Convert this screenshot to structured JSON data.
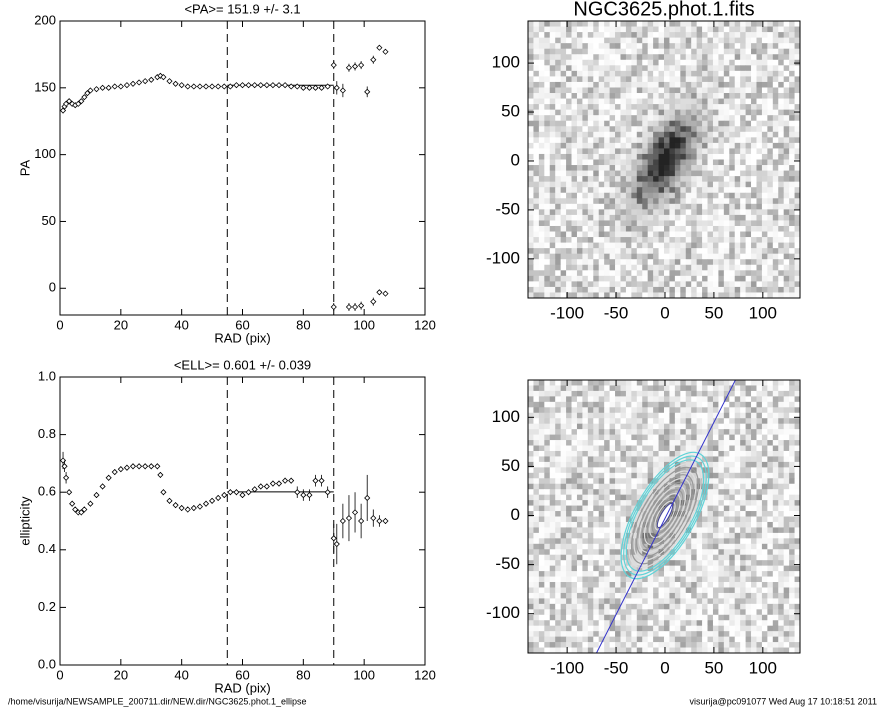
{
  "chart_data": [
    {
      "type": "scatter",
      "title": "<PA>= 151.9 +/-   3.1",
      "xlabel": "RAD (pix)",
      "ylabel": "PA",
      "x": [
        1,
        1.5,
        2,
        3,
        4,
        5,
        6,
        7,
        8,
        9,
        10,
        12,
        14,
        16,
        18,
        20,
        22,
        24,
        26,
        28,
        30,
        32,
        33,
        34,
        36,
        38,
        40,
        42,
        44,
        46,
        48,
        50,
        52,
        54,
        56,
        58,
        60,
        62,
        64,
        66,
        68,
        70,
        72,
        74,
        76,
        78,
        80,
        82,
        84,
        86,
        88,
        90,
        91,
        93,
        95,
        97,
        99,
        101,
        103,
        105,
        107,
        90,
        95,
        97,
        99,
        103,
        105,
        107
      ],
      "values": [
        133,
        136,
        138,
        140,
        138,
        137,
        138,
        140,
        143,
        146,
        148,
        149,
        150,
        150,
        151,
        151,
        152,
        153,
        154,
        155,
        156,
        158,
        159,
        158,
        155,
        153,
        152,
        151,
        151,
        151,
        151,
        151,
        151,
        151,
        151,
        152,
        152,
        152,
        152,
        152,
        152,
        152,
        152,
        152,
        151,
        151,
        150,
        150,
        150,
        150,
        151,
        167,
        150,
        148,
        165,
        166,
        167,
        147,
        171,
        180,
        177,
        -14,
        -14,
        -14,
        -13,
        -10,
        -3,
        -4
      ],
      "errors": [
        2,
        2,
        2,
        1,
        1,
        1,
        1,
        1,
        1,
        1,
        1,
        1,
        1,
        1,
        1,
        1,
        1,
        1,
        1,
        1,
        1,
        1,
        1,
        1,
        1,
        1,
        1,
        1,
        1,
        1,
        1,
        1,
        1,
        1,
        1,
        1,
        1,
        1,
        1,
        1,
        1,
        1,
        1,
        1,
        1,
        1,
        1,
        1,
        1,
        1,
        1,
        3,
        5,
        5,
        3,
        3,
        3,
        4,
        3,
        2,
        2,
        3,
        3,
        3,
        3,
        3,
        2,
        2
      ],
      "xlim": [
        0,
        120
      ],
      "ylim": [
        -20,
        200
      ],
      "xticks": [
        0,
        20,
        40,
        60,
        80,
        100,
        120
      ],
      "yticks": [
        0,
        50,
        100,
        150,
        200
      ],
      "vlines": [
        55,
        90
      ],
      "fit": {
        "x": [
          55,
          90
        ],
        "y": 151.9
      }
    },
    {
      "type": "scatter",
      "title": "<ELL>= 0.601 +/-  0.039",
      "xlabel": "RAD (pix)",
      "ylabel": "ellipticity",
      "x": [
        1,
        1.5,
        2,
        3,
        4,
        5,
        6,
        7,
        8,
        10,
        12,
        14,
        16,
        18,
        20,
        22,
        24,
        26,
        28,
        30,
        32,
        33,
        34,
        36,
        38,
        40,
        42,
        44,
        46,
        48,
        50,
        52,
        54,
        56,
        58,
        60,
        62,
        64,
        66,
        68,
        70,
        72,
        74,
        76,
        78,
        80,
        82,
        84,
        86,
        88,
        90,
        91,
        93,
        95,
        97,
        99,
        101,
        103,
        105,
        107
      ],
      "values": [
        0.71,
        0.69,
        0.65,
        0.6,
        0.56,
        0.54,
        0.53,
        0.53,
        0.54,
        0.56,
        0.59,
        0.62,
        0.65,
        0.67,
        0.68,
        0.685,
        0.69,
        0.69,
        0.69,
        0.69,
        0.69,
        0.66,
        0.6,
        0.57,
        0.555,
        0.545,
        0.54,
        0.545,
        0.55,
        0.56,
        0.57,
        0.58,
        0.59,
        0.6,
        0.6,
        0.59,
        0.6,
        0.61,
        0.62,
        0.62,
        0.63,
        0.63,
        0.64,
        0.64,
        0.6,
        0.59,
        0.59,
        0.64,
        0.64,
        0.6,
        0.44,
        0.42,
        0.5,
        0.51,
        0.53,
        0.5,
        0.58,
        0.51,
        0.5,
        0.5
      ],
      "errors": [
        0.03,
        0.02,
        0.02,
        0.01,
        0.01,
        0.01,
        0.01,
        0.01,
        0.01,
        0.01,
        0.01,
        0.01,
        0.01,
        0.01,
        0.01,
        0.01,
        0.01,
        0.01,
        0.01,
        0.01,
        0.01,
        0.01,
        0.01,
        0.01,
        0.01,
        0.01,
        0.01,
        0.01,
        0.01,
        0.01,
        0.01,
        0.01,
        0.01,
        0.01,
        0.01,
        0.01,
        0.01,
        0.01,
        0.01,
        0.01,
        0.01,
        0.01,
        0.01,
        0.01,
        0.02,
        0.02,
        0.02,
        0.02,
        0.02,
        0.02,
        0.05,
        0.07,
        0.06,
        0.08,
        0.07,
        0.06,
        0.08,
        0.03,
        0.02,
        0.01
      ],
      "xlim": [
        0,
        120
      ],
      "ylim": [
        0,
        1
      ],
      "xticks": [
        0,
        20,
        40,
        60,
        80,
        100,
        120
      ],
      "yticks": [
        {
          "value": 0,
          "label": "0.0"
        },
        0.2,
        0.4,
        0.6,
        0.8,
        {
          "value": 1,
          "label": "1.0"
        }
      ],
      "vlines": [
        55,
        90
      ],
      "fit": {
        "x": [
          55,
          90
        ],
        "y": 0.601
      }
    },
    {
      "type": "image",
      "title": "NGC3625.phot.1.fits",
      "xlim": [
        -140,
        138
      ],
      "ylim": [
        -140,
        143
      ],
      "xticks": [
        -100,
        -50,
        0,
        50,
        100
      ],
      "yticks": [
        -100,
        -50,
        0,
        50,
        100
      ]
    },
    {
      "type": "image",
      "xlim": [
        -140,
        138
      ],
      "ylim": [
        -140,
        138
      ],
      "xticks": [
        -100,
        -50,
        0,
        50,
        100
      ],
      "yticks": [
        -100,
        -50,
        0,
        50,
        100
      ],
      "contours": true
    }
  ],
  "footer": {
    "left": "/home/visurija/NEWSAMPLE_200711.dir/NEW.dir/NGC3625.phot.1_ellipse",
    "right": "visurija@pc091077  Wed Aug 17 10:18:51 2011"
  }
}
